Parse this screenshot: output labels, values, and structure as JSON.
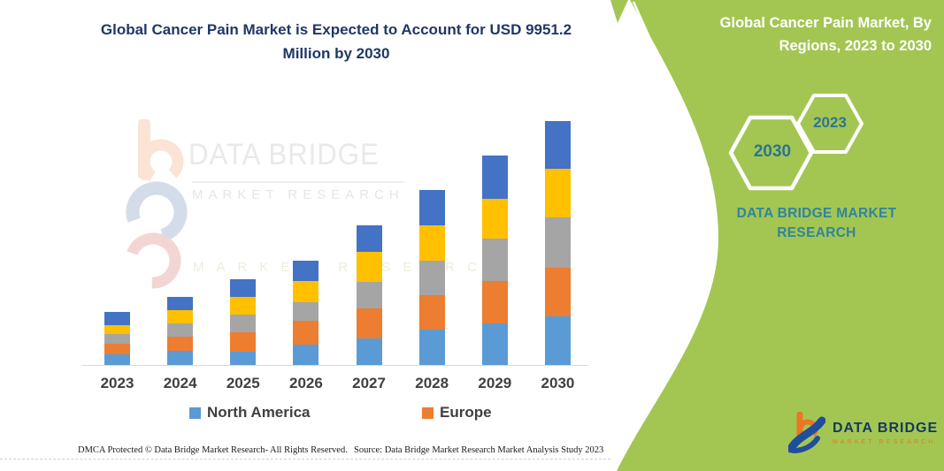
{
  "colors": {
    "panel_green": "#A3C653",
    "title_navy": "#1F3864",
    "teal": "#31849B",
    "hex_year_teal": "#2E7490",
    "axis_gray": "#D9D9D9"
  },
  "header": {
    "title": "Global Cancer Pain Market is Expected to Account for USD 9951.2 Million by 2030"
  },
  "side_panel": {
    "title": "Global Cancer Pain Market, By Regions, 2023 to 2030",
    "hexagons": [
      {
        "label": "2030"
      },
      {
        "label": "2023"
      }
    ],
    "brand": "DATA BRIDGE MARKET RESEARCH"
  },
  "watermark": {
    "brand_top": "DATA BRIDGE",
    "brand_bottom": "MARKET RESEARCH",
    "brand_repeat": "MARKET RESEARCH"
  },
  "logo_badge": {
    "name": "DATA BRIDGE",
    "sub": "MARKET RESEARCH"
  },
  "footer": {
    "left": "DMCA Protected © Data Bridge Market Research-  All Rights Reserved.",
    "right": "Source: Data Bridge Market Research  Market Analysis Study 2023"
  },
  "chart_data": {
    "type": "bar",
    "stacked": true,
    "title": "Global Cancer Pain Market is Expected to Account for USD 9951.2 Million by 2030",
    "xlabel": "",
    "ylabel": "",
    "legend_position": "bottom",
    "legend_visible_entries": [
      "North America",
      "Europe"
    ],
    "grid": false,
    "y_axis_shown": false,
    "units": "USD Million (estimated; only 2030 total of 9951.2 is labeled)",
    "categories": [
      "2023",
      "2024",
      "2025",
      "2026",
      "2027",
      "2028",
      "2029",
      "2030"
    ],
    "series": [
      {
        "name": "North America",
        "color": "#5B9BD5",
        "values": [
          433,
          577,
          551,
          829,
          1082,
          1442,
          1695,
          1983
        ]
      },
      {
        "name": "Europe",
        "color": "#ED7D31",
        "values": [
          433,
          577,
          782,
          973,
          1226,
          1406,
          1731,
          1983
        ]
      },
      {
        "name": "(unlabeled gray series)",
        "color": "#A5A5A5",
        "values": [
          397,
          541,
          721,
          757,
          1082,
          1406,
          1731,
          2055
        ]
      },
      {
        "name": "(unlabeled yellow series)",
        "color": "#FFC000",
        "values": [
          361,
          541,
          721,
          865,
          1226,
          1442,
          1622,
          1983
        ]
      },
      {
        "name": "(unlabeled dark blue series)",
        "color": "#4472C4",
        "values": [
          541,
          541,
          721,
          829,
          1082,
          1442,
          1767,
          1947
        ]
      }
    ],
    "totals_estimated": [
      2165,
      2777,
      3496,
      4253,
      5698,
      7138,
      8546,
      9951
    ]
  }
}
